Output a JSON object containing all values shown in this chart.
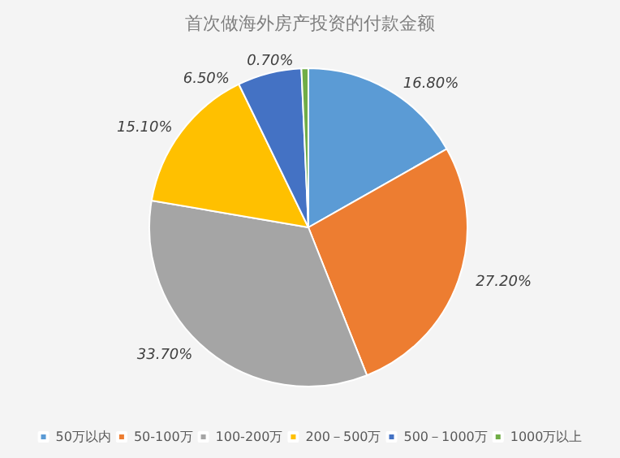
{
  "chart_data": {
    "type": "pie",
    "title": "首次做海外房产投资的付款金额",
    "categories": [
      "50万以内",
      "50-100万",
      "100-200万",
      "200－500万",
      "500－1000万",
      "1000万以上"
    ],
    "values": [
      16.8,
      27.2,
      33.7,
      15.1,
      6.5,
      0.7
    ],
    "value_labels": [
      "16.80%",
      "27.20%",
      "33.70%",
      "15.10%",
      "6.50%",
      "0.70%"
    ],
    "colors": [
      "#5b9bd5",
      "#ed7d31",
      "#a5a5a5",
      "#ffc000",
      "#4472c4",
      "#70ad47"
    ],
    "legend": "bottom"
  }
}
